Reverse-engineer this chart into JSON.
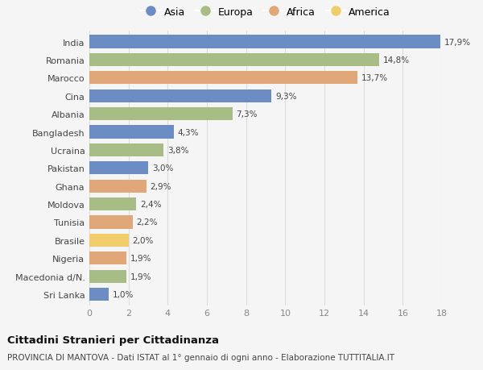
{
  "countries": [
    "India",
    "Romania",
    "Marocco",
    "Cina",
    "Albania",
    "Bangladesh",
    "Ucraina",
    "Pakistan",
    "Ghana",
    "Moldova",
    "Tunisia",
    "Brasile",
    "Nigeria",
    "Macedonia d/N.",
    "Sri Lanka"
  ],
  "values": [
    17.9,
    14.8,
    13.7,
    9.3,
    7.3,
    4.3,
    3.8,
    3.0,
    2.9,
    2.4,
    2.2,
    2.0,
    1.9,
    1.9,
    1.0
  ],
  "regions": [
    "Asia",
    "Europa",
    "Africa",
    "Asia",
    "Europa",
    "Asia",
    "Europa",
    "Asia",
    "Africa",
    "Europa",
    "Africa",
    "America",
    "Africa",
    "Europa",
    "Asia"
  ],
  "colors": {
    "Asia": "#6b8dc4",
    "Europa": "#a8bc85",
    "Africa": "#e0a878",
    "America": "#f0cc6a"
  },
  "legend_order": [
    "Asia",
    "Europa",
    "Africa",
    "America"
  ],
  "title": "Cittadini Stranieri per Cittadinanza",
  "subtitle": "PROVINCIA DI MANTOVA - Dati ISTAT al 1° gennaio di ogni anno - Elaborazione TUTTITALIA.IT",
  "xlim": [
    0,
    18
  ],
  "xticks": [
    0,
    2,
    4,
    6,
    8,
    10,
    12,
    14,
    16,
    18
  ],
  "bg_color": "#f5f5f5",
  "bar_height": 0.72
}
